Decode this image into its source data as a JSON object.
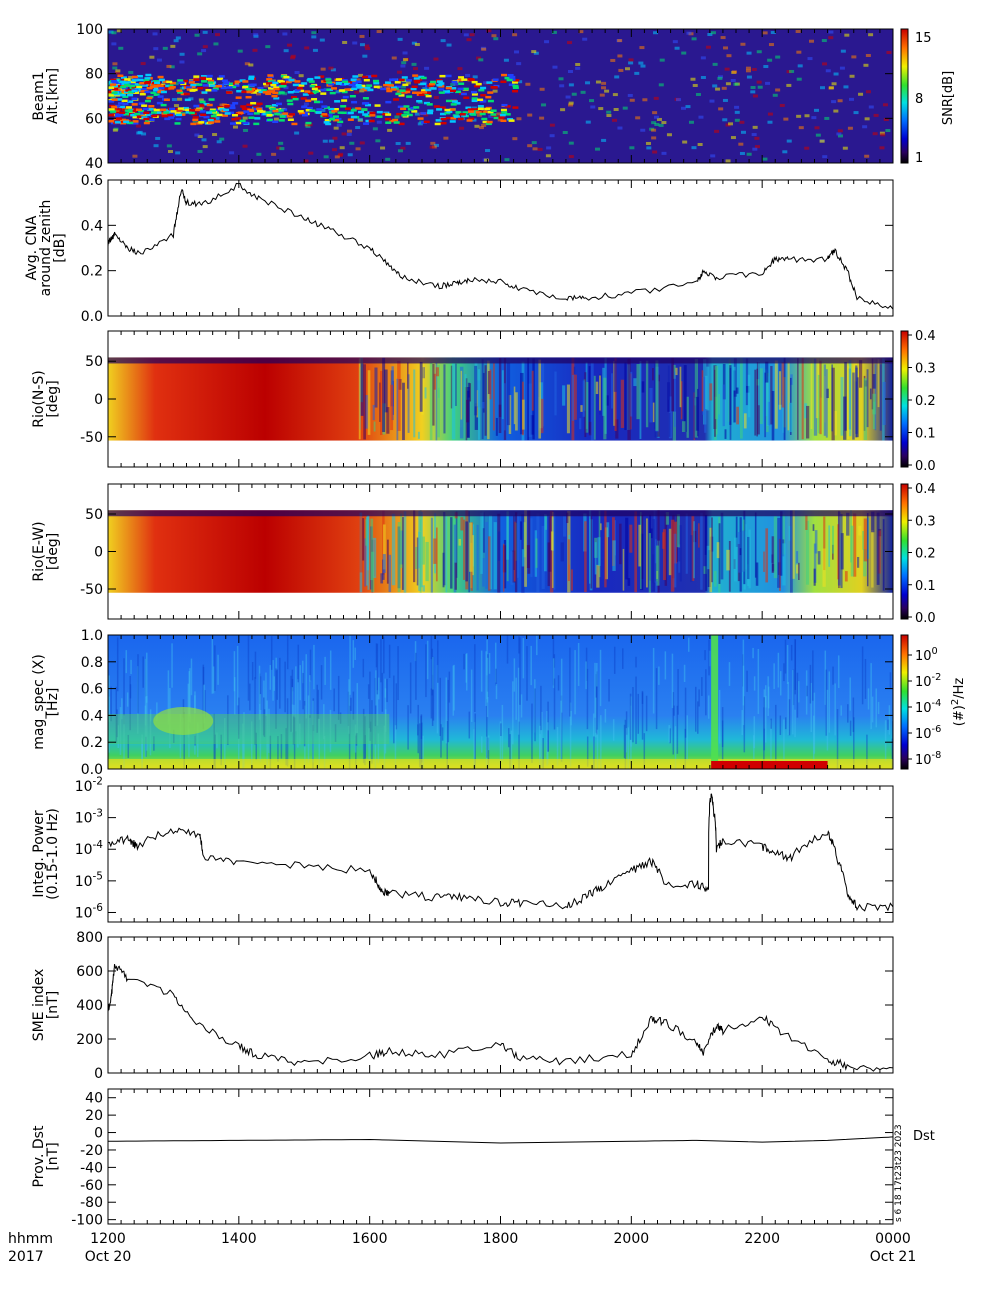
{
  "chart_data": [
    {
      "type": "heatmap",
      "ylabel": [
        "Beam1",
        "Alt.[km]"
      ],
      "ylim": [
        40,
        100
      ],
      "yticks": [
        40,
        60,
        80,
        100
      ],
      "colorbar": {
        "label": "SNR[dB]",
        "ticks": [
          1,
          8,
          15
        ]
      },
      "layers": [
        [
          62,
          80,
          0.75
        ],
        [
          72,
          78,
          0.55
        ],
        [
          58,
          65,
          0.5
        ]
      ]
    },
    {
      "type": "line",
      "ylabel": [
        "Avg. CNA",
        "around zenith",
        "[dB]"
      ],
      "ylim": [
        0,
        0.6
      ],
      "yticks": [
        0.0,
        0.2,
        0.4,
        0.6
      ],
      "x": [
        1200,
        1210,
        1230,
        1250,
        1300,
        1312,
        1320,
        1345,
        1400,
        1430,
        1500,
        1540,
        1600,
        1630,
        1650,
        1700,
        1730,
        1750,
        1800,
        1830,
        1900,
        1930,
        2000,
        2100,
        2110,
        2130,
        2200,
        2220,
        2240,
        2300,
        2310,
        2330,
        2345,
        2400
      ],
      "values": [
        0.32,
        0.36,
        0.3,
        0.27,
        0.36,
        0.56,
        0.5,
        0.49,
        0.58,
        0.52,
        0.43,
        0.38,
        0.3,
        0.22,
        0.17,
        0.13,
        0.14,
        0.16,
        0.15,
        0.12,
        0.08,
        0.08,
        0.1,
        0.15,
        0.2,
        0.17,
        0.19,
        0.25,
        0.25,
        0.25,
        0.29,
        0.2,
        0.08,
        0.03
      ]
    },
    {
      "type": "heatmap",
      "ylabel": [
        "Rio(N-S)",
        "[deg]"
      ],
      "ylim": [
        -90,
        90
      ],
      "yticks": [
        -50,
        0,
        50
      ],
      "data_range": [
        -55,
        55
      ],
      "colorbar": {
        "ticks": [
          0.0,
          0.1,
          0.2,
          0.3,
          0.4
        ]
      }
    },
    {
      "type": "heatmap",
      "ylabel": [
        "Rio(E-W)",
        "[deg]"
      ],
      "ylim": [
        -90,
        90
      ],
      "yticks": [
        -50,
        0,
        50
      ],
      "data_range": [
        -55,
        55
      ],
      "colorbar": {
        "ticks": [
          0.0,
          0.1,
          0.2,
          0.3,
          0.4
        ]
      }
    },
    {
      "type": "heatmap",
      "ylabel": [
        "mag_spec (X)",
        "[Hz]"
      ],
      "ylim": [
        0,
        1.0
      ],
      "yticks": [
        0.0,
        0.2,
        0.4,
        0.6,
        0.8,
        1.0
      ],
      "colorbar": {
        "label_parts": [
          "(#)",
          "2",
          "/Hz"
        ],
        "ticks": [
          {
            "b": "10",
            "e": "0"
          },
          {
            "b": "10",
            "e": "-2"
          },
          {
            "b": "10",
            "e": "-4"
          },
          {
            "b": "10",
            "e": "-6"
          },
          {
            "b": "10",
            "e": "-8"
          }
        ]
      }
    },
    {
      "type": "line",
      "scale": "log",
      "ylabel": [
        "Integ. Power",
        "(0.15-1.0 Hz)"
      ],
      "ylim": [
        5e-07,
        0.01
      ],
      "yticks": [
        {
          "b": "10",
          "e": "-6"
        },
        {
          "b": "10",
          "e": "-5"
        },
        {
          "b": "10",
          "e": "-4"
        },
        {
          "b": "10",
          "e": "-3"
        },
        {
          "b": "10",
          "e": "-2"
        }
      ],
      "x": [
        1200,
        1230,
        1245,
        1300,
        1340,
        1345,
        1400,
        1500,
        1600,
        1615,
        1630,
        1700,
        1740,
        1800,
        1830,
        1900,
        1930,
        1955,
        2000,
        2030,
        2050,
        2100,
        2118,
        2122,
        2126,
        2130,
        2140,
        2200,
        2220,
        2245,
        2300,
        2315,
        2330,
        2345,
        2400
      ],
      "values": [
        0.00015,
        0.0002,
        0.00012,
        0.0004,
        0.0003,
        6e-05,
        4e-05,
        3e-05,
        2e-05,
        5e-06,
        4e-06,
        3e-06,
        3e-06,
        2e-06,
        2e-06,
        1.5e-06,
        3e-06,
        6e-06,
        2e-05,
        4e-05,
        8e-06,
        8e-06,
        5e-06,
        0.005,
        0.0015,
        8e-05,
        0.0002,
        0.00012,
        8e-05,
        5e-05,
        0.0003,
        4e-05,
        3e-06,
        1.5e-06,
        1.5e-06
      ]
    },
    {
      "type": "line",
      "ylabel": [
        "SME index",
        "[nT]"
      ],
      "ylim": [
        0,
        800
      ],
      "yticks": [
        0,
        200,
        400,
        600,
        800
      ],
      "x": [
        1200,
        1205,
        1210,
        1230,
        1300,
        1330,
        1400,
        1430,
        1500,
        1600,
        1630,
        1700,
        1800,
        1830,
        1900,
        2000,
        2030,
        2050,
        2100,
        2110,
        2130,
        2140,
        2200,
        2230,
        2300,
        2330,
        2400
      ],
      "values": [
        370,
        450,
        630,
        560,
        460,
        300,
        160,
        100,
        60,
        100,
        130,
        100,
        180,
        80,
        70,
        110,
        310,
        300,
        180,
        120,
        280,
        250,
        330,
        240,
        80,
        40,
        30
      ]
    },
    {
      "type": "line",
      "ylabel": [
        "Prov. Dst",
        "[nT]"
      ],
      "ylim": [
        -105,
        50
      ],
      "yticks": [
        -100,
        -80,
        -60,
        -40,
        -20,
        0,
        20,
        40
      ],
      "x": [
        1200,
        1400,
        1600,
        1800,
        2000,
        2100,
        2200,
        2300,
        2400
      ],
      "values": [
        -10,
        -9,
        -8,
        -12,
        -10,
        -9,
        -11,
        -9,
        -5
      ],
      "series_label": "Dst"
    }
  ],
  "x_axis": {
    "range": [
      1200,
      2400
    ],
    "tick_labels": [
      "1200",
      "1400",
      "1600",
      "1800",
      "2000",
      "2200",
      "0000"
    ],
    "row_header_1": "hhmm",
    "row_header_2": "2017",
    "date_start": "Oct 20",
    "date_end": "Oct 21"
  },
  "stamp": "s 6 18 17t23t23 2023"
}
